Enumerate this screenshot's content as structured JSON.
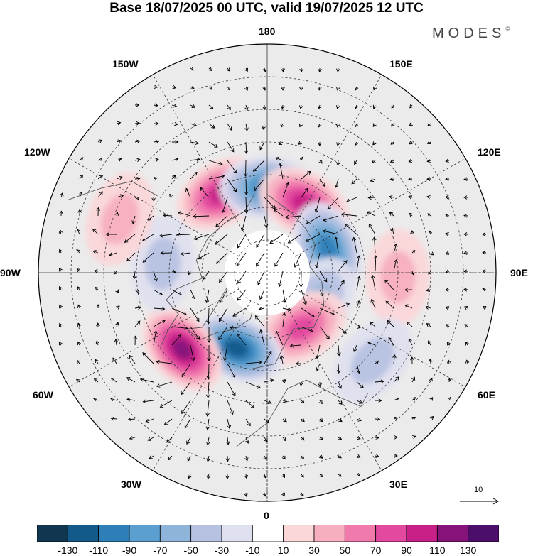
{
  "title": "Base 18/07/2025 00 UTC, valid 19/07/2025 12 UTC",
  "brand": "MODES",
  "brand_mark": "©",
  "longitude_labels": {
    "top": "180",
    "bottom": "0",
    "left": "90W",
    "right": "90E",
    "upper_left": "150W",
    "upper_left_2": "120W",
    "lower_left": "60W",
    "lower_left_2": "30W",
    "upper_right": "150E",
    "upper_right_2": "120E",
    "lower_right": "60E",
    "lower_right_2": "30E"
  },
  "vector_reference": "10",
  "colorbar": {
    "ticks": [
      "-130",
      "-110",
      "-90",
      "-70",
      "-50",
      "-30",
      "-10",
      "10",
      "30",
      "50",
      "70",
      "90",
      "110",
      "130"
    ],
    "colors": [
      "#10374f",
      "#115a8a",
      "#2e7fb8",
      "#5a9fcf",
      "#8fb4da",
      "#b7c2e2",
      "#dfe0ef",
      "#ffffff",
      "#fbd7d9",
      "#f7afc0",
      "#f07aac",
      "#e34a9f",
      "#c72088",
      "#86137a",
      "#4d0d6a"
    ]
  },
  "anomaly_centers": [
    {
      "sign": "positive",
      "lon": -150,
      "lat": 62,
      "level": 90
    },
    {
      "sign": "negative",
      "lon": 180,
      "lat": 64,
      "level": -90
    },
    {
      "sign": "positive",
      "lon": 152,
      "lat": 66,
      "level": 90
    },
    {
      "sign": "negative",
      "lon": 112,
      "lat": 70,
      "level": -90
    },
    {
      "sign": "positive",
      "lon": 88,
      "lat": 50,
      "level": 30
    },
    {
      "sign": "negative",
      "lon": 60,
      "lat": 72,
      "level": -50
    },
    {
      "sign": "positive",
      "lon": 32,
      "lat": 70,
      "level": 70
    },
    {
      "sign": "negative",
      "lon": -22,
      "lat": 65,
      "level": -110
    },
    {
      "sign": "positive",
      "lon": -48,
      "lat": 55,
      "level": 110
    },
    {
      "sign": "negative",
      "lon": -95,
      "lat": 58,
      "level": -30
    },
    {
      "sign": "positive",
      "lon": -110,
      "lat": 42,
      "level": 30
    },
    {
      "sign": "negative",
      "lon": 50,
      "lat": 48,
      "level": -30
    }
  ]
}
